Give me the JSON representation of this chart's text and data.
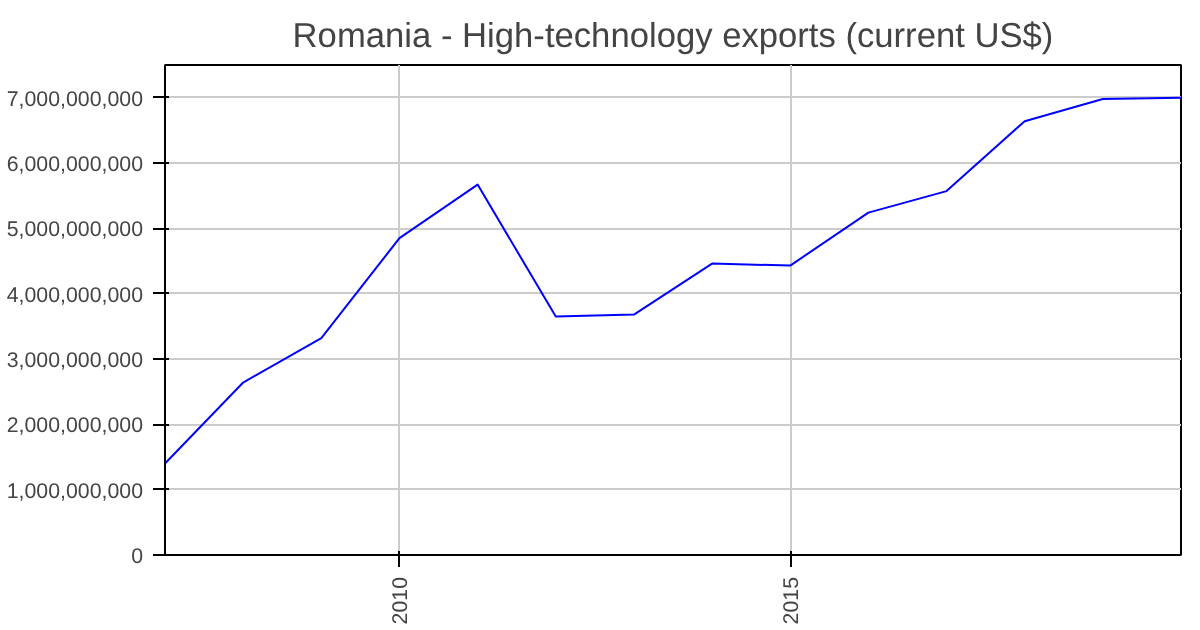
{
  "chart_data": {
    "type": "line",
    "title": "Romania - High-technology exports (current US$)",
    "x": [
      2007,
      2008,
      2009,
      2010,
      2011,
      2012,
      2013,
      2014,
      2015,
      2016,
      2017,
      2018,
      2019,
      2020
    ],
    "series": [
      {
        "color": "#0000ff",
        "values": [
          1400000000,
          2640000000,
          3320000000,
          4850000000,
          5670000000,
          3650000000,
          3680000000,
          4460000000,
          4430000000,
          5240000000,
          5570000000,
          6640000000,
          6980000000,
          7000000000
        ]
      }
    ],
    "xlim": [
      2007,
      2020
    ],
    "xticks": [
      2010,
      2015
    ],
    "ylim": [
      0,
      7500000000
    ],
    "yticks": [
      {
        "value": 0,
        "label": "0"
      },
      {
        "value": 1000000000,
        "label": "1,000,000,000"
      },
      {
        "value": 2000000000,
        "label": "2,000,000,000"
      },
      {
        "value": 3000000000,
        "label": "3,000,000,000"
      },
      {
        "value": 4000000000,
        "label": "4,000,000,000"
      },
      {
        "value": 5000000000,
        "label": "5,000,000,000"
      },
      {
        "value": 6000000000,
        "label": "6,000,000,000"
      },
      {
        "value": 7000000000,
        "label": "7,000,000,000"
      }
    ],
    "grid": true,
    "marker": "none",
    "line_style": "solid"
  }
}
